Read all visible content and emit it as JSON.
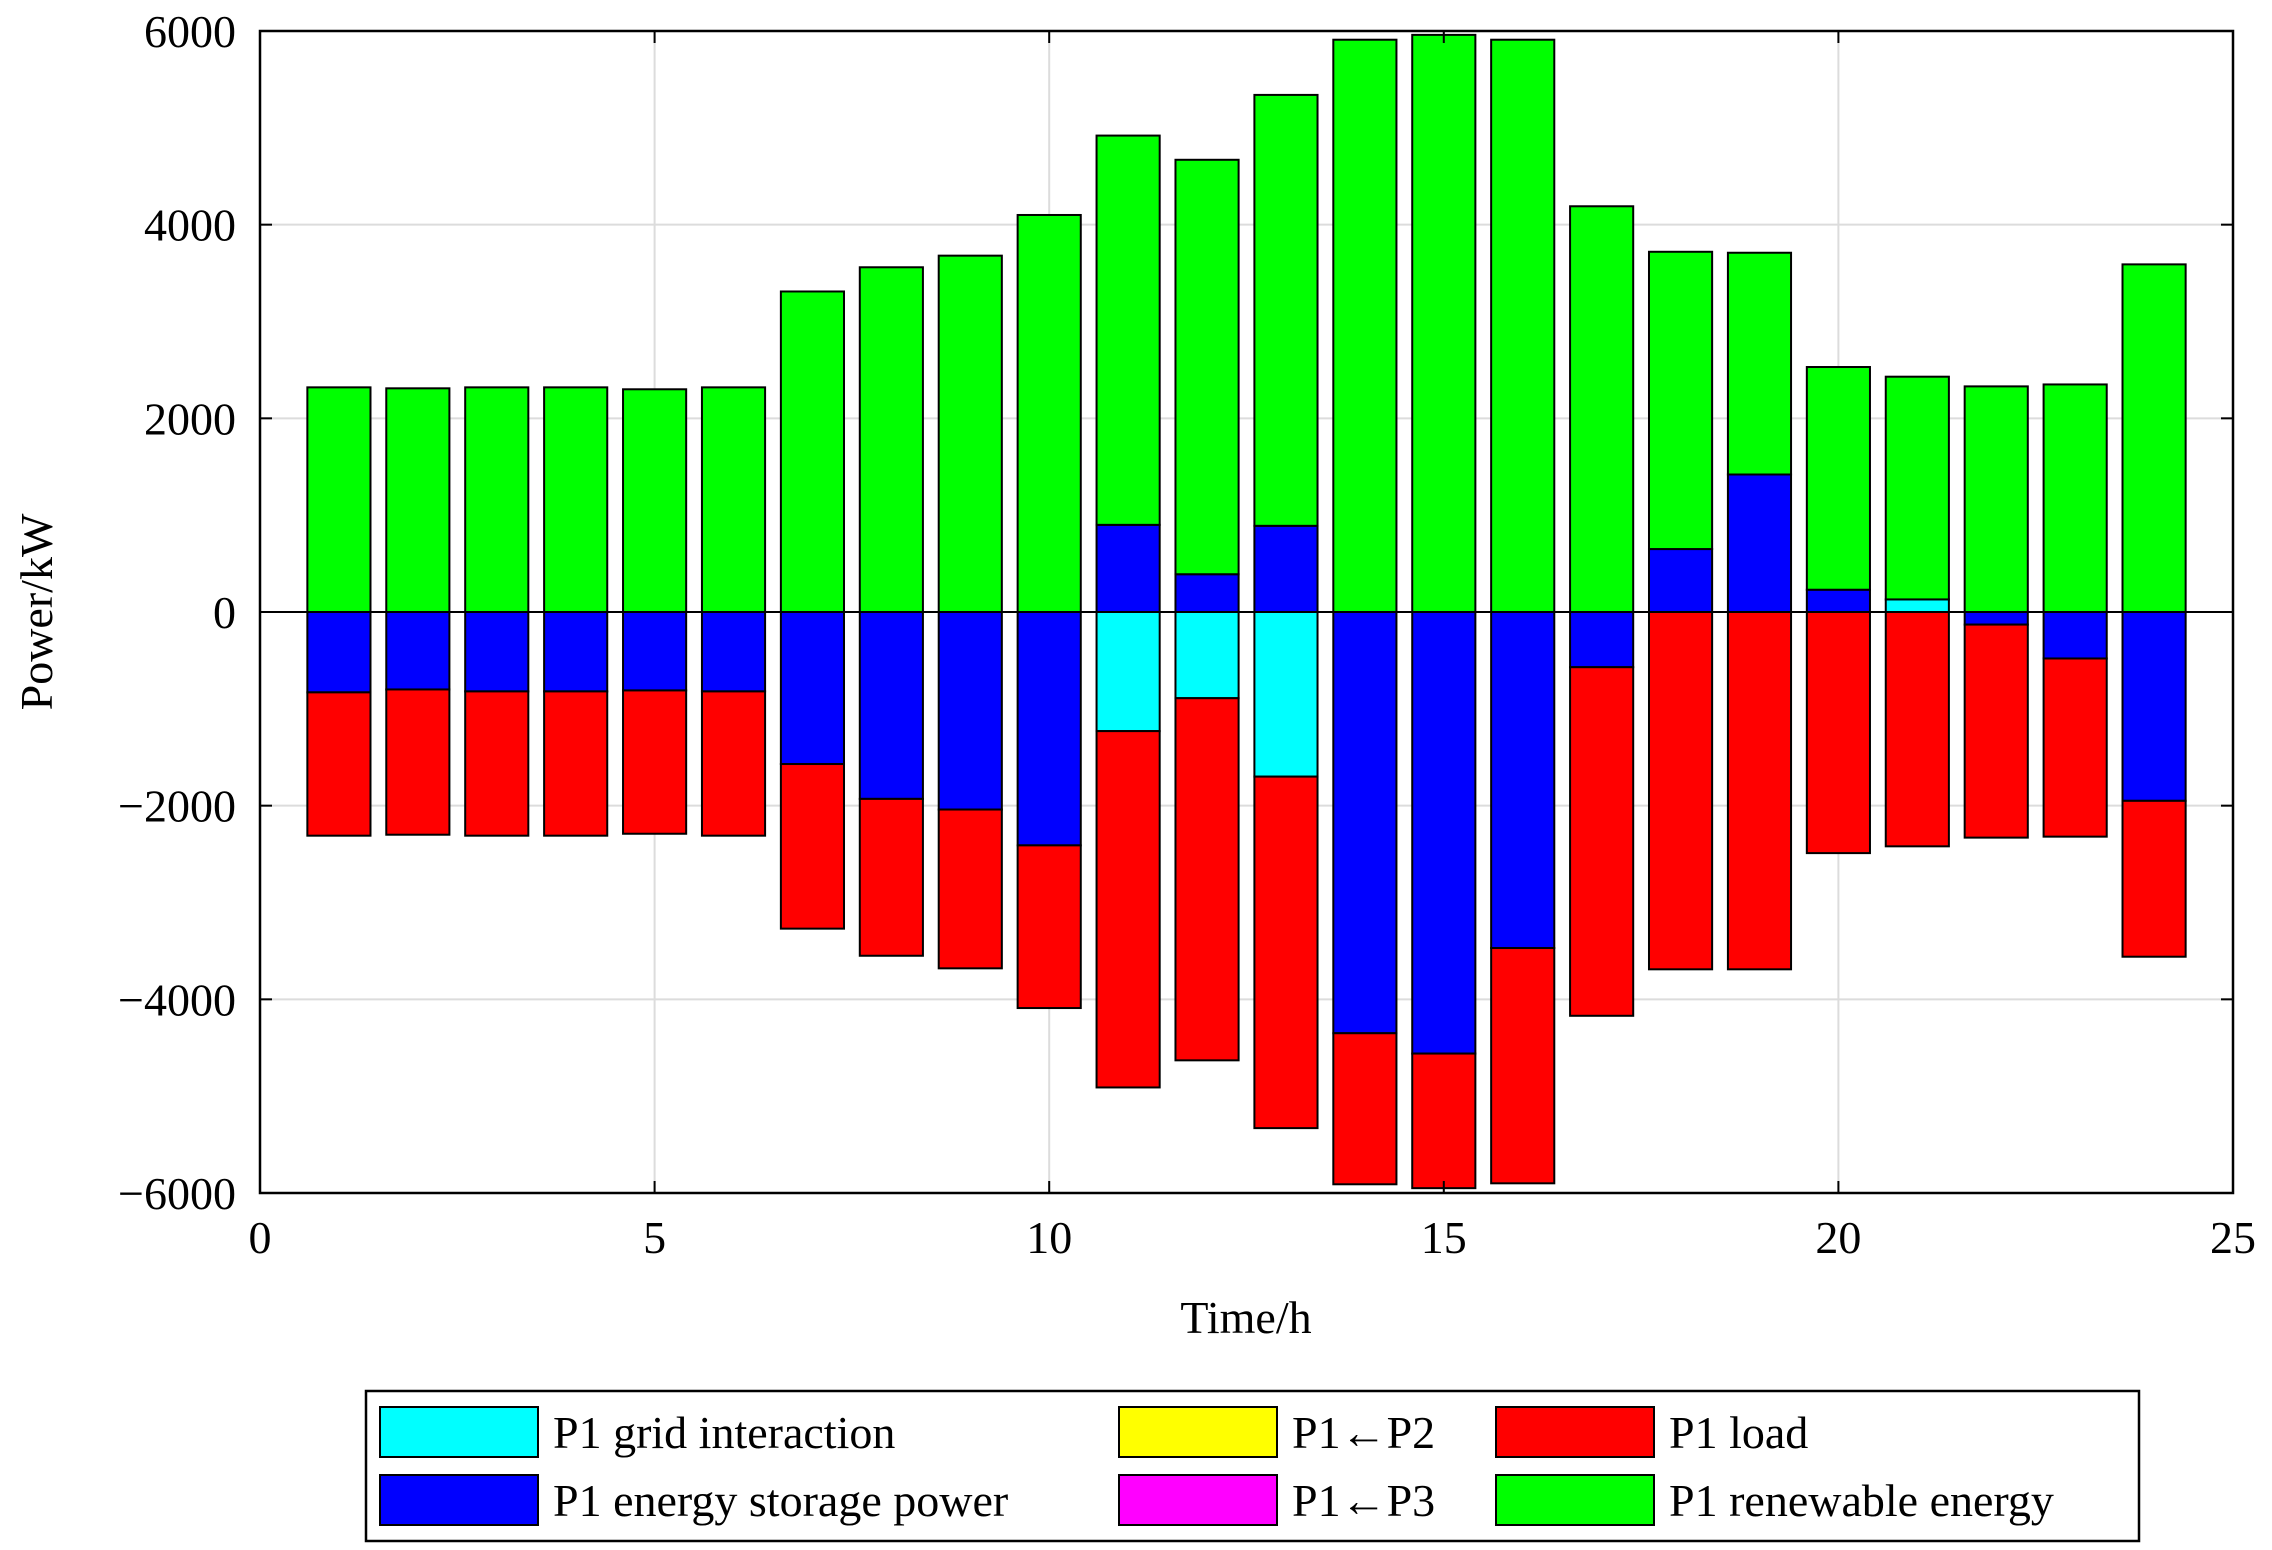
{
  "chart_data": {
    "type": "bar",
    "stacked": true,
    "xlabel": "Time/h",
    "ylabel": "Power/kW",
    "xlim": [
      0,
      25
    ],
    "ylim": [
      -6000,
      6000
    ],
    "grid": true,
    "x_ticks": [
      0,
      5,
      10,
      15,
      20,
      25
    ],
    "y_ticks": [
      -6000,
      -4000,
      -2000,
      0,
      2000,
      4000,
      6000
    ],
    "x_tick_labels": [
      "0",
      "5",
      "10",
      "15",
      "20",
      "25"
    ],
    "y_tick_labels": [
      "−6000",
      "−4000",
      "−2000",
      "0",
      "2000",
      "4000",
      "6000"
    ],
    "x": [
      1,
      2,
      3,
      4,
      5,
      6,
      7,
      8,
      9,
      10,
      11,
      12,
      13,
      14,
      15,
      16,
      17,
      18,
      19,
      20,
      21,
      22,
      23,
      24
    ],
    "legend_position": "bottom-outside",
    "series": [
      {
        "name": "P1 grid interaction",
        "color": "#00FFFF",
        "values": [
          0,
          0,
          0,
          0,
          0,
          0,
          0,
          0,
          0,
          0,
          -1230,
          -890,
          -1700,
          0,
          0,
          0,
          0,
          0,
          0,
          0,
          130,
          0,
          0,
          0
        ]
      },
      {
        "name": "P1 energy storage power",
        "color": "#0000FF",
        "values": [
          -830,
          -800,
          -820,
          -820,
          -810,
          -820,
          -1570,
          -1930,
          -2040,
          -2410,
          900,
          390,
          890,
          -4350,
          -4560,
          -3470,
          -570,
          650,
          1420,
          230,
          0,
          -130,
          -480,
          -1950
        ]
      },
      {
        "name": "P1←P2",
        "color": "#FFFF00",
        "values": [
          0,
          0,
          0,
          0,
          0,
          0,
          0,
          0,
          0,
          0,
          0,
          0,
          0,
          0,
          0,
          0,
          0,
          0,
          0,
          0,
          0,
          0,
          0,
          0
        ]
      },
      {
        "name": "P1←P3",
        "color": "#FF00FF",
        "values": [
          0,
          0,
          0,
          0,
          0,
          0,
          0,
          0,
          0,
          0,
          0,
          0,
          0,
          0,
          0,
          0,
          0,
          0,
          0,
          0,
          0,
          0,
          0,
          0
        ]
      },
      {
        "name": "P1 load",
        "color": "#FF0000",
        "values": [
          -1480,
          -1500,
          -1490,
          -1490,
          -1480,
          -1490,
          -1700,
          -1620,
          -1640,
          -1680,
          -3680,
          -3740,
          -3630,
          -1560,
          -1390,
          -2430,
          -3600,
          -3690,
          -3690,
          -2490,
          -2420,
          -2200,
          -1840,
          -1610
        ]
      },
      {
        "name": "P1 renewable energy",
        "color": "#00FF00",
        "values": [
          2320,
          2310,
          2320,
          2320,
          2300,
          2320,
          3310,
          3560,
          3680,
          4100,
          4020,
          4280,
          4450,
          5910,
          5960,
          5910,
          4190,
          3070,
          2290,
          2300,
          2300,
          2330,
          2350,
          3590
        ]
      }
    ]
  }
}
